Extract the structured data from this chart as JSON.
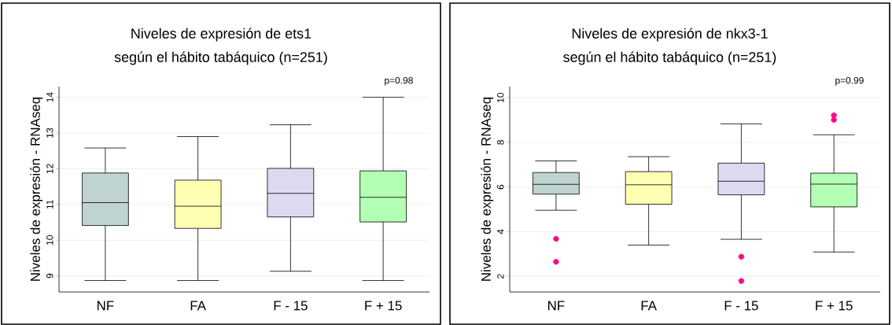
{
  "chart_data": [
    {
      "type": "box",
      "title": "Niveles de expresión de ets1",
      "subtitle": "según el hábito tabáquico (n=251)",
      "ylabel": "Niveles de expresión  -  RNAseq",
      "categories": [
        "NF",
        "FA",
        "F - 15",
        "F + 15"
      ],
      "colors": [
        "#bfd3d0",
        "#ffffb3",
        "#dcdaf0",
        "#b3ffb3"
      ],
      "boxes": [
        {
          "low": 8.87,
          "q1": 10.41,
          "median": 11.05,
          "q3": 11.88,
          "high": 12.58
        },
        {
          "low": 8.87,
          "q1": 10.33,
          "median": 10.95,
          "q3": 11.68,
          "high": 12.9
        },
        {
          "low": 9.13,
          "q1": 10.65,
          "median": 11.31,
          "q3": 12.01,
          "high": 13.23
        },
        {
          "low": 8.87,
          "q1": 10.51,
          "median": 11.2,
          "q3": 11.94,
          "high": 14.0
        }
      ],
      "ylim": [
        8.55,
        14.3
      ],
      "yticks": [
        9,
        10,
        11,
        12,
        13,
        14
      ],
      "grid": "y",
      "annotations": [
        "p=0.98"
      ]
    },
    {
      "type": "box",
      "title": "Niveles de expresión de nkx3-1",
      "subtitle": "según el hábito tabáquico (n=251)",
      "ylabel": "Niveles de expresión  -  RNAseq",
      "categories": [
        "NF",
        "FA",
        "F - 15",
        "F + 15"
      ],
      "colors": [
        "#bfd3d0",
        "#ffffb3",
        "#dcdaf0",
        "#b3ffb3"
      ],
      "boxes": [
        {
          "low": 4.96,
          "q1": 5.68,
          "median": 6.12,
          "q3": 6.65,
          "high": 7.17,
          "outliers": [
            3.68,
            2.65
          ]
        },
        {
          "low": 3.4,
          "q1": 5.23,
          "median": 6.1,
          "q3": 6.69,
          "high": 7.36
        },
        {
          "low": 3.66,
          "q1": 5.65,
          "median": 6.26,
          "q3": 7.07,
          "high": 8.83,
          "outliers": [
            2.88,
            1.79
          ]
        },
        {
          "low": 3.09,
          "q1": 5.11,
          "median": 6.13,
          "q3": 6.62,
          "high": 8.34,
          "outliers": [
            9.21,
            9.01
          ]
        }
      ],
      "ylim": [
        1.3,
        10.5
      ],
      "yticks": [
        2,
        4,
        6,
        8,
        10
      ],
      "grid": "y",
      "annotations": [
        "p=0.99"
      ]
    }
  ]
}
